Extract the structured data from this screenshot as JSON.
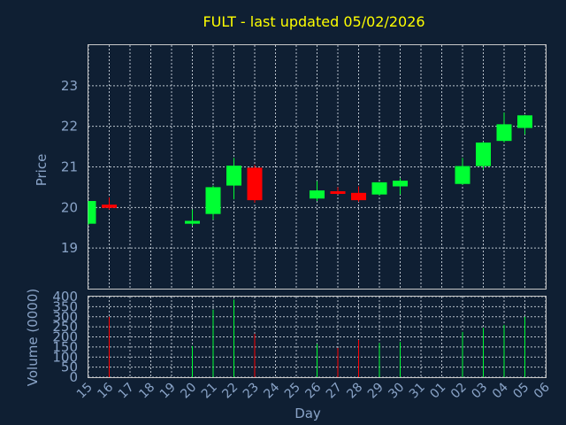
{
  "chart_data": {
    "type": "candlestick",
    "title": "FULT - last updated 05/02/2026",
    "xlabel": "Day",
    "x_ticks": [
      "15",
      "16",
      "17",
      "18",
      "19",
      "20",
      "21",
      "22",
      "23",
      "24",
      "25",
      "26",
      "27",
      "28",
      "29",
      "30",
      "31",
      "01",
      "02",
      "03",
      "04",
      "05",
      "06"
    ],
    "price_panel": {
      "ylabel": "Price",
      "ylim": [
        18.0,
        24.0
      ],
      "yticks": [
        19,
        20,
        21,
        22,
        23
      ],
      "grid": true
    },
    "volume_panel": {
      "ylabel": "Volume (0000)",
      "ylim": [
        0,
        400
      ],
      "yticks": [
        0,
        50,
        100,
        150,
        200,
        250,
        300,
        350,
        400
      ],
      "grid": true
    },
    "colors": {
      "up": "#00ff33",
      "down": "#ff0000"
    },
    "candles": [
      {
        "day": "15",
        "open": 19.6,
        "high": 20.16,
        "low": 19.58,
        "close": 20.16,
        "volume": 0
      },
      {
        "day": "16",
        "open": 20.07,
        "high": 20.25,
        "low": 19.95,
        "close": 19.99,
        "volume": 300
      },
      {
        "day": "20",
        "open": 19.6,
        "high": 19.95,
        "low": 19.55,
        "close": 19.67,
        "volume": 155
      },
      {
        "day": "21",
        "open": 19.84,
        "high": 20.54,
        "low": 19.7,
        "close": 20.5,
        "volume": 335
      },
      {
        "day": "22",
        "open": 20.54,
        "high": 21.22,
        "low": 20.2,
        "close": 21.03,
        "volume": 385
      },
      {
        "day": "23",
        "open": 20.98,
        "high": 21.05,
        "low": 20.12,
        "close": 20.18,
        "volume": 215
      },
      {
        "day": "26",
        "open": 20.22,
        "high": 20.65,
        "low": 20.16,
        "close": 20.42,
        "volume": 165
      },
      {
        "day": "27",
        "open": 20.4,
        "high": 20.5,
        "low": 20.32,
        "close": 20.38,
        "volume": 145
      },
      {
        "day": "28",
        "open": 20.36,
        "high": 20.52,
        "low": 20.14,
        "close": 20.18,
        "volume": 185
      },
      {
        "day": "29",
        "open": 20.32,
        "high": 20.62,
        "low": 20.3,
        "close": 20.62,
        "volume": 170
      },
      {
        "day": "30",
        "open": 20.52,
        "high": 20.72,
        "low": 20.32,
        "close": 20.66,
        "volume": 175
      },
      {
        "day": "02",
        "open": 20.58,
        "high": 21.22,
        "low": 20.56,
        "close": 21.02,
        "volume": 225
      },
      {
        "day": "03",
        "open": 21.02,
        "high": 21.62,
        "low": 20.94,
        "close": 21.6,
        "volume": 245
      },
      {
        "day": "04",
        "open": 21.64,
        "high": 22.34,
        "low": 21.6,
        "close": 22.05,
        "volume": 260
      },
      {
        "day": "05",
        "open": 21.96,
        "high": 22.28,
        "low": 21.8,
        "close": 22.27,
        "volume": 300
      }
    ]
  }
}
